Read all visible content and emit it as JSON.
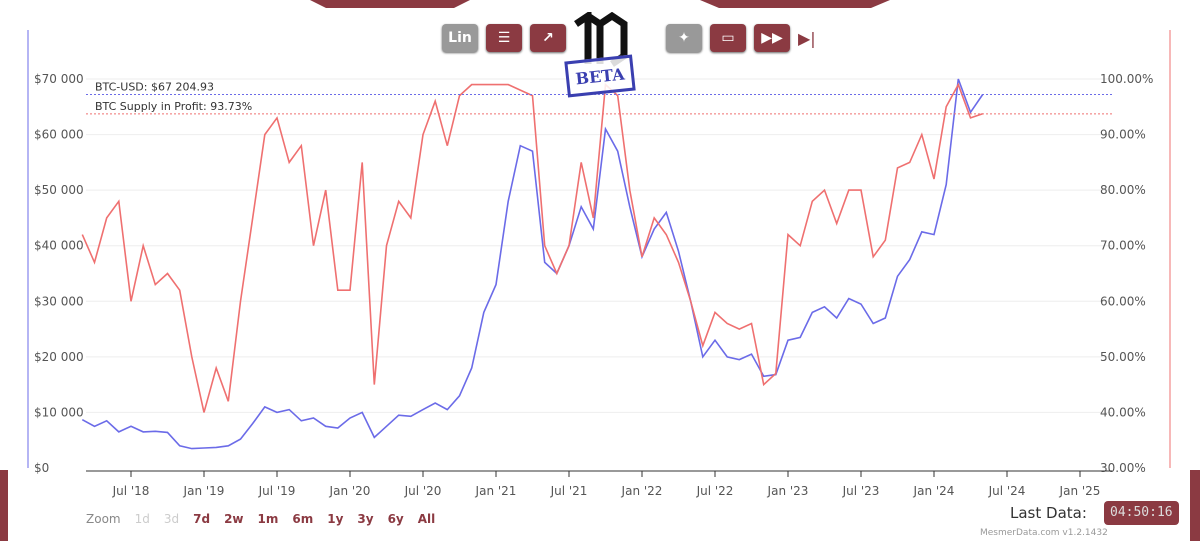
{
  "toolbar": {
    "buttons": [
      {
        "label": "Lin",
        "icon": "linear-scale"
      },
      {
        "label": "",
        "icon": "database-icon"
      },
      {
        "label": "",
        "icon": "chart-line-icon"
      },
      {
        "label": "",
        "icon": "magic-wand-icon"
      },
      {
        "label": "",
        "icon": "monitor-icon"
      },
      {
        "label": "",
        "icon": "fast-forward-icon"
      },
      {
        "label": "",
        "icon": "skip-end-icon"
      }
    ]
  },
  "logo": {
    "text": "MD",
    "stamp": "BETA"
  },
  "labels": {
    "price": "BTC-USD: $67 204.93",
    "profit": "BTC Supply in Profit: 93.73%"
  },
  "zoom": {
    "label": "Zoom",
    "options": [
      "1d",
      "3d",
      "7d",
      "2w",
      "1m",
      "6m",
      "1y",
      "3y",
      "6y",
      "All"
    ],
    "disabled": [
      "1d",
      "3d"
    ]
  },
  "footer": {
    "last_data_label": "Last Data:",
    "last_data_time": "04:50:16",
    "version": "MesmerData.com v1.2.1432"
  },
  "colors": {
    "price": "#6b6be8",
    "profit": "#ef7070",
    "brand": "#8b3a42"
  },
  "chart_data": {
    "type": "line",
    "x_ticks": [
      "Jul '18",
      "Jan '19",
      "Jul '19",
      "Jan '20",
      "Jul '20",
      "Jan '21",
      "Jul '21",
      "Jan '22",
      "Jul '22",
      "Jan '23",
      "Jul '23",
      "Jan '24",
      "Jul '24",
      "Jan '25"
    ],
    "y_left_ticks": [
      "$0",
      "$10 000",
      "$20 000",
      "$30 000",
      "$40 000",
      "$50 000",
      "$60 000",
      "$70 000"
    ],
    "y_right_ticks": [
      "30.00%",
      "40.00%",
      "50.00%",
      "60.00%",
      "70.00%",
      "80.00%",
      "90.00%",
      "100.00%"
    ],
    "y_left_range": [
      0,
      70000
    ],
    "y_right_range": [
      30,
      100
    ],
    "x": [
      "2018-03",
      "2018-04",
      "2018-05",
      "2018-06",
      "2018-07",
      "2018-08",
      "2018-09",
      "2018-10",
      "2018-11",
      "2018-12",
      "2019-01",
      "2019-02",
      "2019-03",
      "2019-04",
      "2019-05",
      "2019-06",
      "2019-07",
      "2019-08",
      "2019-09",
      "2019-10",
      "2019-11",
      "2019-12",
      "2020-01",
      "2020-02",
      "2020-03",
      "2020-04",
      "2020-05",
      "2020-06",
      "2020-07",
      "2020-08",
      "2020-09",
      "2020-10",
      "2020-11",
      "2020-12",
      "2021-01",
      "2021-02",
      "2021-03",
      "2021-04",
      "2021-05",
      "2021-06",
      "2021-07",
      "2021-08",
      "2021-09",
      "2021-10",
      "2021-11",
      "2021-12",
      "2022-01",
      "2022-02",
      "2022-03",
      "2022-04",
      "2022-05",
      "2022-06",
      "2022-07",
      "2022-08",
      "2022-09",
      "2022-10",
      "2022-11",
      "2022-12",
      "2023-01",
      "2023-02",
      "2023-03",
      "2023-04",
      "2023-05",
      "2023-06",
      "2023-07",
      "2023-08",
      "2023-09",
      "2023-10",
      "2023-11",
      "2023-12",
      "2024-01",
      "2024-02",
      "2024-03",
      "2024-04",
      "2024-05"
    ],
    "series": [
      {
        "name": "BTC-USD",
        "axis": "left",
        "values": [
          8700,
          7500,
          8500,
          6500,
          7500,
          6500,
          6600,
          6400,
          4000,
          3500,
          3600,
          3700,
          4000,
          5200,
          8000,
          11000,
          10000,
          10500,
          8500,
          9000,
          7500,
          7200,
          9000,
          10000,
          5500,
          7500,
          9500,
          9300,
          10500,
          11700,
          10500,
          13000,
          18000,
          28000,
          33000,
          48000,
          58000,
          57000,
          37000,
          35000,
          40000,
          47000,
          43000,
          61000,
          57000,
          47000,
          38000,
          43000,
          46000,
          39000,
          30000,
          20000,
          23000,
          20000,
          19500,
          20500,
          16500,
          16800,
          23000,
          23500,
          28000,
          29000,
          27000,
          30500,
          29500,
          26000,
          27000,
          34500,
          37500,
          42500,
          42000,
          51000,
          70000,
          64000,
          67204.93
        ]
      },
      {
        "name": "BTC Supply in Profit",
        "axis": "right",
        "values": [
          72,
          67,
          75,
          78,
          60,
          70,
          63,
          65,
          62,
          50,
          40,
          48,
          42,
          60,
          75,
          90,
          93,
          85,
          88,
          70,
          80,
          62,
          62,
          85,
          45,
          70,
          78,
          75,
          90,
          96,
          88,
          97,
          99,
          99,
          99,
          99,
          98,
          97,
          70,
          65,
          70,
          85,
          75,
          99,
          97,
          80,
          68,
          75,
          72,
          67,
          60,
          52,
          58,
          56,
          55,
          56,
          45,
          47,
          72,
          70,
          78,
          80,
          74,
          80,
          80,
          68,
          71,
          84,
          85,
          90,
          82,
          95,
          99,
          93,
          93.73
        ]
      }
    ]
  }
}
